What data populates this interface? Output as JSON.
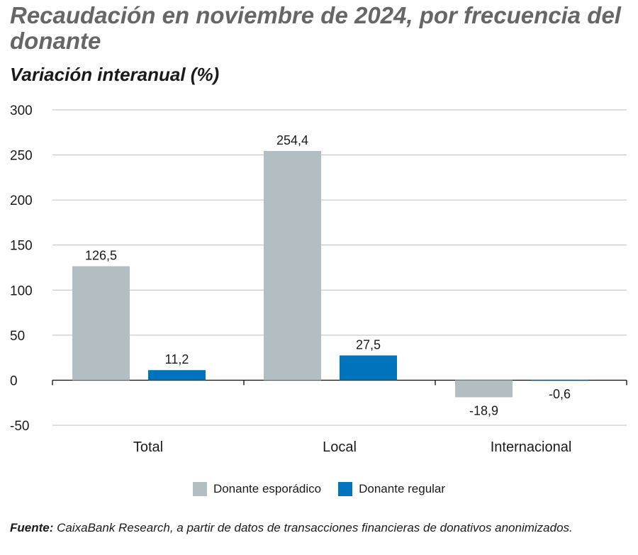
{
  "chart_data": {
    "type": "bar",
    "title": "Recaudación en noviembre de 2024, por frecuencia del donante",
    "subtitle": "Variación interanual (%)",
    "categories": [
      "Total",
      "Local",
      "Internacional"
    ],
    "series": [
      {
        "name": "Donante esporádico",
        "values": [
          126.5,
          254.4,
          -18.9
        ],
        "labels": [
          "126,5",
          "254,4",
          "-18,9"
        ],
        "color": "#b2bec2"
      },
      {
        "name": "Donante regular",
        "values": [
          11.2,
          27.5,
          -0.6
        ],
        "labels": [
          "11,2",
          "27,5",
          "-0,6"
        ],
        "color": "#0073bd"
      }
    ],
    "ylim": [
      -50,
      300
    ],
    "yticks": [
      -50,
      0,
      50,
      100,
      150,
      200,
      250,
      300
    ],
    "ytick_labels": [
      "-50",
      "0",
      "50",
      "100",
      "150",
      "200",
      "250",
      "300"
    ],
    "grid": true,
    "legend_position": "bottom-center"
  },
  "source": {
    "label": "Fuente:",
    "text": "CaixaBank Research, a partir de datos de transacciones financieras de donativos anonimizados."
  }
}
